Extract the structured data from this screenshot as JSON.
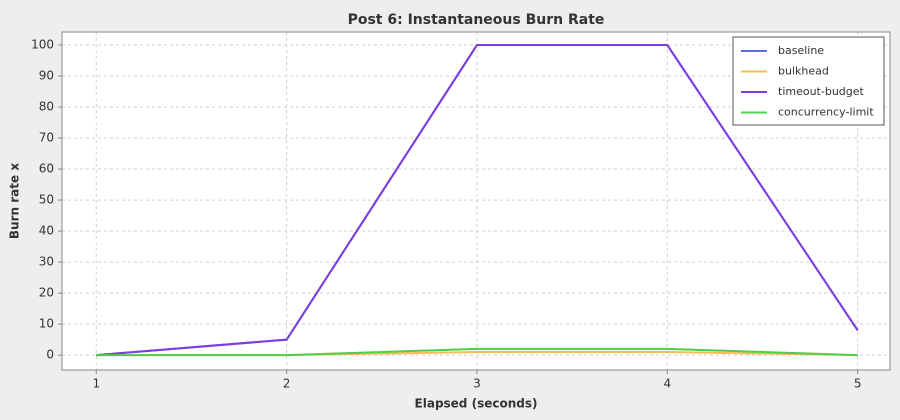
{
  "chart_data": {
    "type": "line",
    "title": "Post 6: Instantaneous Burn Rate",
    "x_label": "Elapsed (seconds)",
    "y_label": "Burn rate x",
    "x": [
      1,
      2,
      3,
      4,
      5
    ],
    "series": [
      {
        "name": "baseline",
        "color": "#5b6ee1",
        "values": [
          0,
          5,
          100,
          100,
          8
        ]
      },
      {
        "name": "bulkhead",
        "color": "#f7bd55",
        "values": [
          0,
          0,
          1,
          1,
          0
        ]
      },
      {
        "name": "timeout-budget",
        "color": "#7d3ddf",
        "values": [
          0,
          5,
          100,
          100,
          8
        ]
      },
      {
        "name": "concurrency-limit",
        "color": "#4ccf4c",
        "values": [
          0,
          0,
          2,
          2,
          0
        ]
      }
    ],
    "xlim": [
      0.82,
      5.17
    ],
    "xticks": [
      1,
      2,
      3,
      4,
      5
    ],
    "ylim": [
      -4.8,
      104.2
    ],
    "yticks": [
      0,
      10,
      20,
      30,
      40,
      50,
      60,
      70,
      80,
      90,
      100
    ],
    "grid": true,
    "legend": "top-right"
  }
}
